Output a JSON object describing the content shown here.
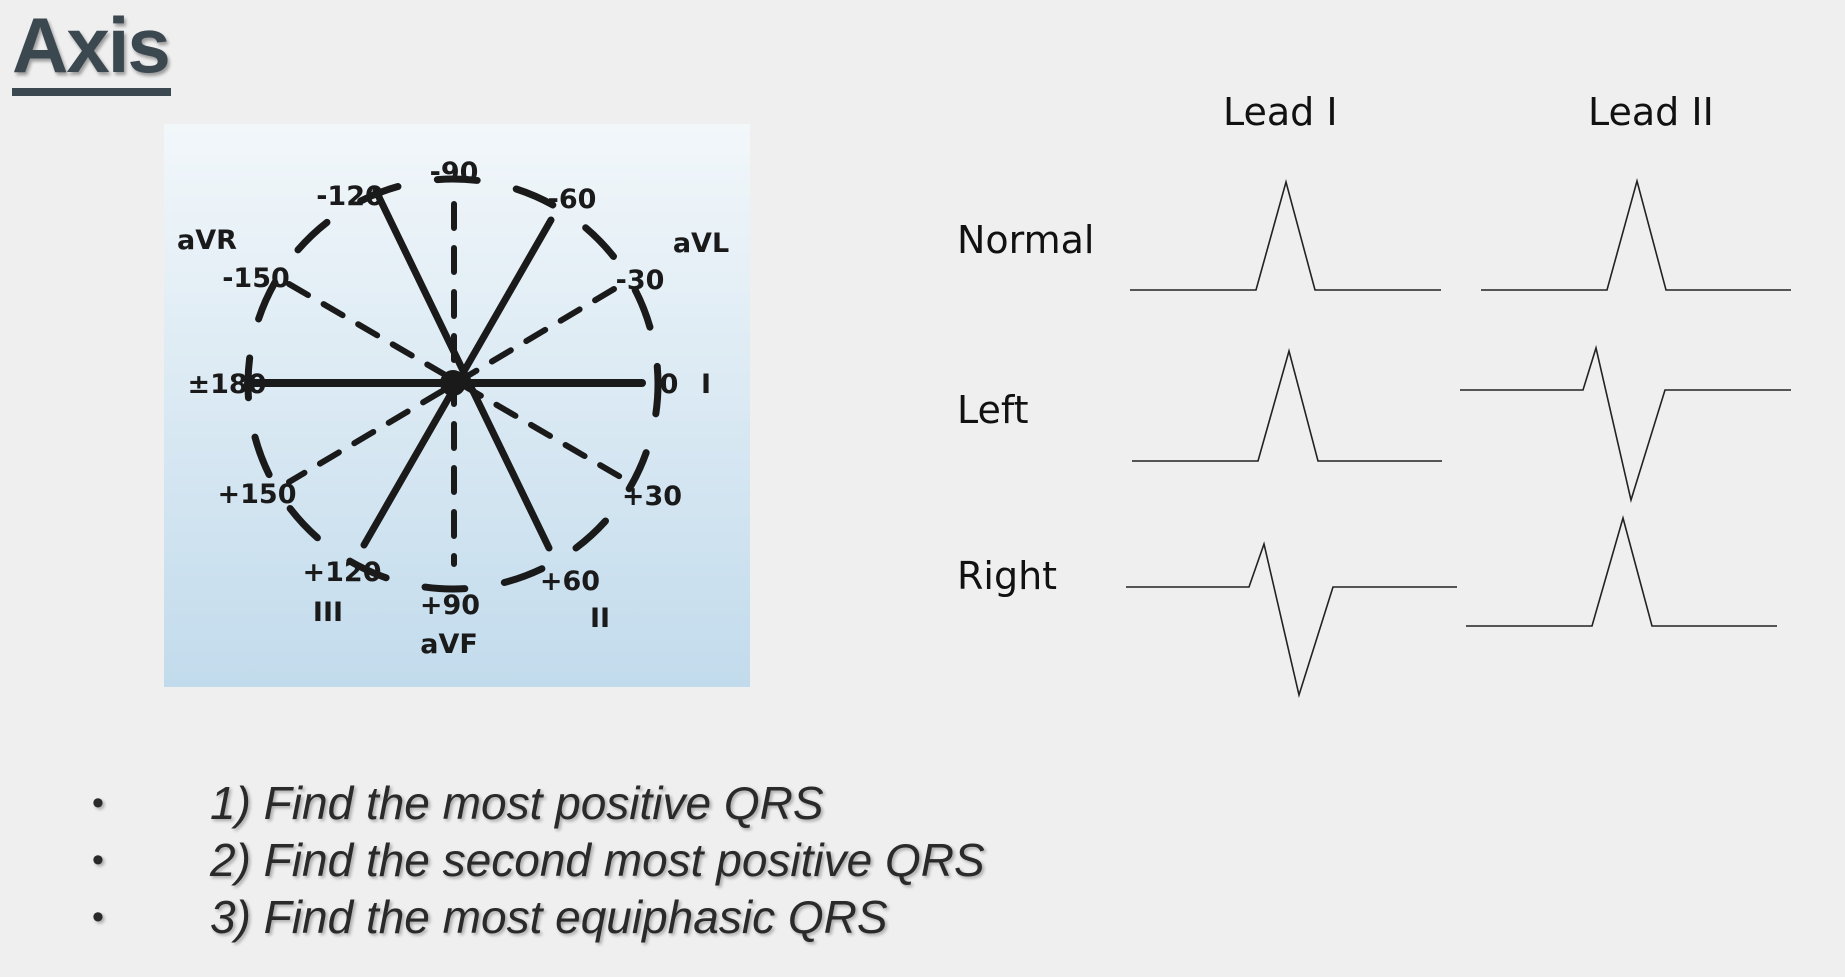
{
  "title": "Axis",
  "axis_wheel": {
    "angles": {
      "m90": "-90",
      "m120": "-120",
      "m60": "-60",
      "m150": "-150",
      "m30": "-30",
      "pm180": "±180",
      "zero": "0",
      "p150": "+150",
      "p30": "+30",
      "p120": "+120",
      "p60": "+60",
      "p90": "+90"
    },
    "leads": {
      "avr": "aVR",
      "avl": "aVL",
      "i": "I",
      "iii": "III",
      "ii": "II",
      "avf": "aVF"
    }
  },
  "ecg": {
    "columns": [
      "Lead I",
      "Lead II"
    ],
    "rows": [
      "Normal",
      "Left",
      "Right"
    ]
  },
  "steps": [
    "1) Find the most positive QRS",
    "2) Find the second most positive QRS",
    "3) Find the most equiphasic QRS"
  ],
  "bullet": "•"
}
